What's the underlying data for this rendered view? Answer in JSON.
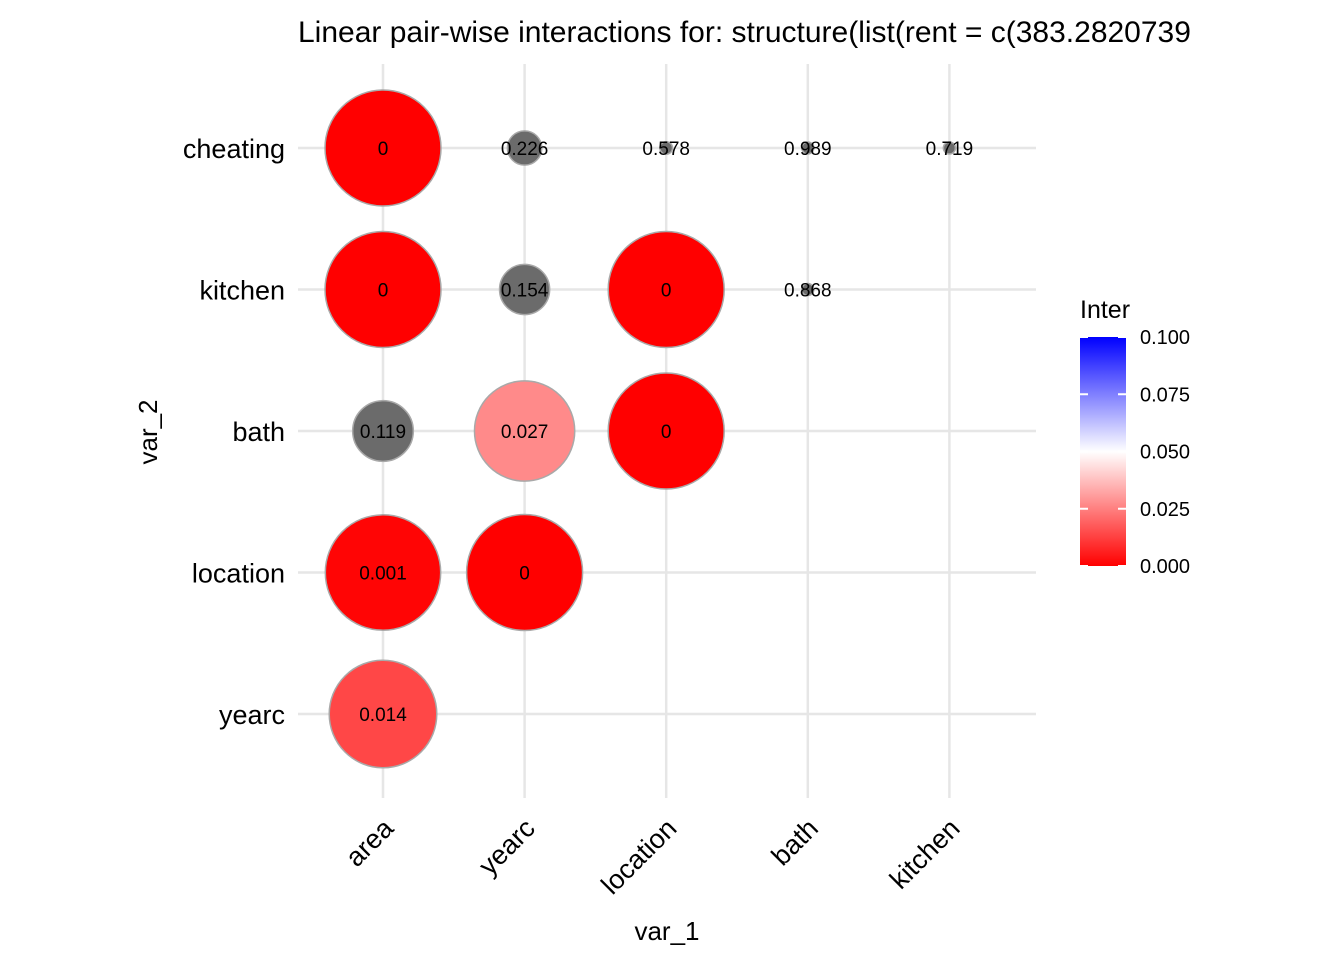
{
  "chart_data": {
    "type": "scatter",
    "title": "Linear pair-wise interactions for: structure(list(rent = c(383.2820739",
    "xlabel": "var_1",
    "ylabel": "var_2",
    "x_categories": [
      "area",
      "yearc",
      "location",
      "bath",
      "kitchen"
    ],
    "y_categories": [
      "yearc",
      "location",
      "bath",
      "kitchen",
      "cheating"
    ],
    "legend": {
      "title": "Inter",
      "position": "right",
      "range": [
        0.0,
        0.1
      ],
      "ticks": [
        "0.100",
        "0.075",
        "0.050",
        "0.025",
        "0.000"
      ],
      "colors": {
        "low": "#ff0000",
        "mid": "#ffffff",
        "high": "#0000ff",
        "na": "#6b6b6b"
      }
    },
    "points": [
      {
        "x": "area",
        "y": "cheating",
        "value": 0,
        "label": "0"
      },
      {
        "x": "yearc",
        "y": "cheating",
        "value": 0.226,
        "label": "0.226"
      },
      {
        "x": "location",
        "y": "cheating",
        "value": 0.578,
        "label": "0.578"
      },
      {
        "x": "bath",
        "y": "cheating",
        "value": 0.989,
        "label": "0.989"
      },
      {
        "x": "kitchen",
        "y": "cheating",
        "value": 0.719,
        "label": "0.719"
      },
      {
        "x": "area",
        "y": "kitchen",
        "value": 0,
        "label": "0"
      },
      {
        "x": "yearc",
        "y": "kitchen",
        "value": 0.154,
        "label": "0.154"
      },
      {
        "x": "location",
        "y": "kitchen",
        "value": 0,
        "label": "0"
      },
      {
        "x": "bath",
        "y": "kitchen",
        "value": 0.868,
        "label": "0.868"
      },
      {
        "x": "area",
        "y": "bath",
        "value": 0.119,
        "label": "0.119"
      },
      {
        "x": "yearc",
        "y": "bath",
        "value": 0.027,
        "label": "0.027"
      },
      {
        "x": "location",
        "y": "bath",
        "value": 0,
        "label": "0"
      },
      {
        "x": "area",
        "y": "location",
        "value": 0.001,
        "label": "0.001"
      },
      {
        "x": "yearc",
        "y": "location",
        "value": 0,
        "label": "0"
      },
      {
        "x": "area",
        "y": "yearc",
        "value": 0.014,
        "label": "0.014"
      }
    ]
  }
}
